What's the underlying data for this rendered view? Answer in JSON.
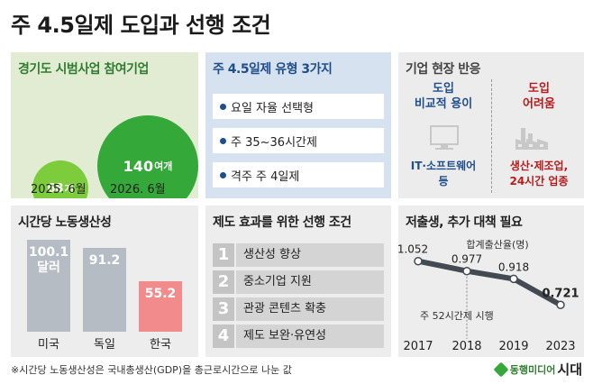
{
  "title": "주 4.5일제 도입과 선행 조건",
  "panel1": {
    "title": "경기도 시범사업 참여기업",
    "bubbles": [
      {
        "value": "68",
        "unit": "개",
        "date": "2025. 6월"
      },
      {
        "value": "140",
        "unit": "여개",
        "date": "2026. 6월"
      }
    ]
  },
  "panel2": {
    "title": "주 4.5일제 유형 3가지",
    "items": [
      "요일 자율 선택형",
      "주 35~36시간제",
      "격주 주 4일제"
    ]
  },
  "panel3": {
    "title": "기업 현장 반응",
    "left": {
      "heading_line1": "도입",
      "heading_line2": "비교적 용이",
      "icon": "monitor-icon",
      "footer_line1": "IT·소프트웨어",
      "footer_line2": "등"
    },
    "right": {
      "heading_line1": "도입",
      "heading_line2": "어려움",
      "icon": "factory-icon",
      "footer_line1": "생산·제조업,",
      "footer_line2": "24시간 업종"
    }
  },
  "panel4": {
    "title": "시간당 노동생산성"
  },
  "panel5": {
    "title": "제도 효과를 위한 선행 조건",
    "items": [
      {
        "num": "1",
        "text": "생산성 향상"
      },
      {
        "num": "2",
        "text": "중소기업 지원"
      },
      {
        "num": "3",
        "text": "관광 콘텐츠 확충"
      },
      {
        "num": "4",
        "text": "제도 보완·유연성"
      }
    ]
  },
  "panel6": {
    "title": "저출생, 추가 대책 필요",
    "annotation": "주 52시간제 시행"
  },
  "chart_data": [
    {
      "type": "bar",
      "title": "시간당 노동생산성",
      "categories": [
        "미국",
        "독일",
        "한국"
      ],
      "values": [
        100.1,
        91.2,
        55.2
      ],
      "value_labels": [
        "100.1",
        "91.2",
        "55.2"
      ],
      "extra_label": "달러",
      "ylim": [
        0,
        110
      ],
      "colors": [
        "#b5bcc4",
        "#b5bcc4",
        "#f28b8b"
      ]
    },
    {
      "type": "line",
      "title": "저출생, 추가 대책 필요",
      "ylabel": "합계출산율(명)",
      "x": [
        "2017",
        "2018",
        "2019",
        "2023"
      ],
      "values": [
        1.052,
        0.977,
        0.918,
        0.721
      ],
      "value_labels": [
        "1.052",
        "0.977",
        "0.918",
        "0.721"
      ],
      "ylim": [
        0.6,
        1.2
      ],
      "line_color": "#444a52"
    }
  ],
  "footnote": "※시간당 노동생산성은 국내총생산(GDP)을 총근로시간으로 나눈 값",
  "logo": {
    "small": "동행미디어",
    "big": "시대"
  }
}
